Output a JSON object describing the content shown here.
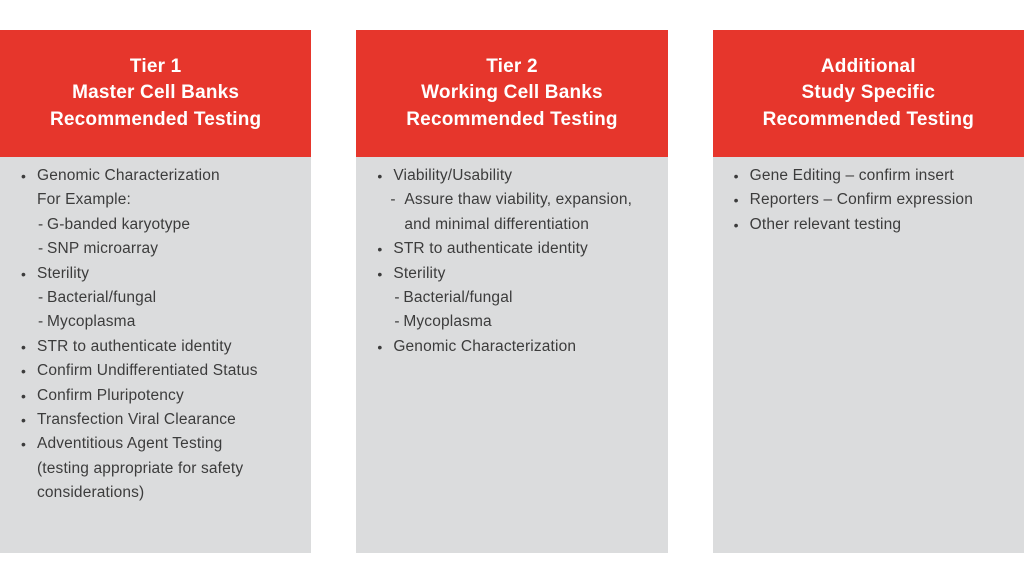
{
  "colors": {
    "header_bg": "#E6362C",
    "header_text": "#FFFFFF",
    "body_bg": "#DBDCDD",
    "body_text": "#3C3C3C",
    "page_bg": "#FFFFFF"
  },
  "markers": {
    "bullet": "•",
    "dash": "-",
    "dash2": "-",
    "plain": ""
  },
  "columns": [
    {
      "id": "tier1",
      "header_lines": [
        "Tier 1",
        "Master Cell Banks",
        "Recommended Testing"
      ],
      "items": [
        {
          "style": "bullet",
          "text": "Genomic Characterization"
        },
        {
          "style": "plain",
          "text": "For Example:"
        },
        {
          "style": "dash",
          "text": "G-banded karyotype"
        },
        {
          "style": "dash",
          "text": "SNP microarray"
        },
        {
          "style": "bullet",
          "text": "Sterility"
        },
        {
          "style": "dash",
          "text": "Bacterial/fungal"
        },
        {
          "style": "dash",
          "text": "Mycoplasma"
        },
        {
          "style": "bullet",
          "text": "STR to authenticate identity"
        },
        {
          "style": "bullet",
          "text": "Confirm Undifferentiated Status"
        },
        {
          "style": "bullet",
          "text": "Confirm Pluripotency"
        },
        {
          "style": "bullet",
          "text": "Transfection Viral Clearance"
        },
        {
          "style": "bullet",
          "text": "Adventitious Agent Testing\n(testing appropriate for safety\nconsiderations)"
        }
      ]
    },
    {
      "id": "tier2",
      "header_lines": [
        "Tier 2",
        "Working Cell Banks",
        "Recommended Testing"
      ],
      "items": [
        {
          "style": "bullet",
          "text": "Viability/Usability"
        },
        {
          "style": "dash2",
          "text": "Assure thaw viability, expansion,\nand minimal differentiation"
        },
        {
          "style": "bullet",
          "text": "STR to authenticate identity"
        },
        {
          "style": "bullet",
          "text": "Sterility"
        },
        {
          "style": "dash",
          "text": "Bacterial/fungal"
        },
        {
          "style": "dash",
          "text": "Mycoplasma"
        },
        {
          "style": "bullet",
          "text": "Genomic Characterization"
        }
      ]
    },
    {
      "id": "additional",
      "header_lines": [
        "Additional",
        "Study Specific",
        "Recommended Testing"
      ],
      "items": [
        {
          "style": "bullet",
          "text": "Gene Editing – confirm insert"
        },
        {
          "style": "bullet",
          "text": "Reporters – Confirm expression"
        },
        {
          "style": "bullet",
          "text": "Other relevant testing"
        }
      ]
    }
  ]
}
